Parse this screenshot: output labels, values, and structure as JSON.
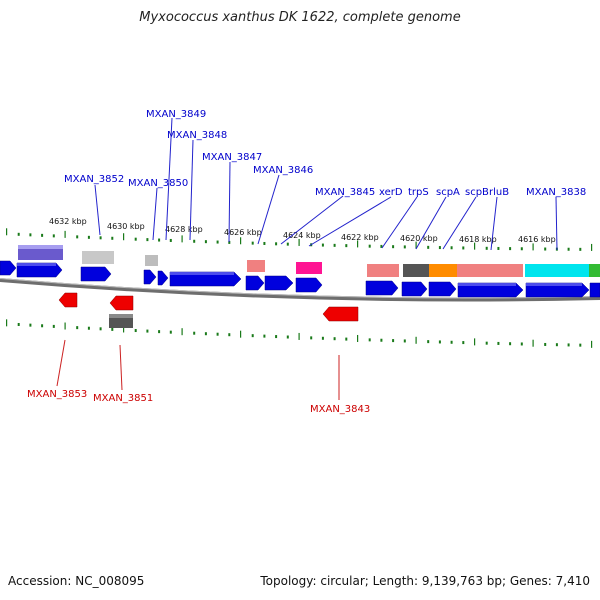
{
  "title": "Myxococcus xanthus DK 1622, complete genome",
  "footer": {
    "accession": "Accession: NC_008095",
    "summary": "Topology: circular; Length: 9,139,763 bp; Genes: 7,410"
  },
  "colors": {
    "forward_gene": "#0000dd",
    "reverse_gene": "#dd0000",
    "forward_label": "#0000cc",
    "reverse_label": "#cc0000",
    "ticks": "#1a7a1a",
    "backbone": "#777777"
  },
  "ruler": [
    "4632 kbp",
    "4630 kbp",
    "4628 kbp",
    "4626 kbp",
    "4624 kbp",
    "4622 kbp",
    "4620 kbp",
    "4618 kbp",
    "4616 kbp"
  ],
  "top_labels": [
    "MXAN_3852",
    "MXAN_3850",
    "MXAN_3849",
    "MXAN_3848",
    "MXAN_3847",
    "MXAN_3846",
    "MXAN_3845",
    "xerD",
    "trpS",
    "scpA",
    "scpB",
    "rluB",
    "MXAN_3838"
  ],
  "bottom_labels": [
    "MXAN_3853",
    "MXAN_3851",
    "MXAN_3843"
  ]
}
